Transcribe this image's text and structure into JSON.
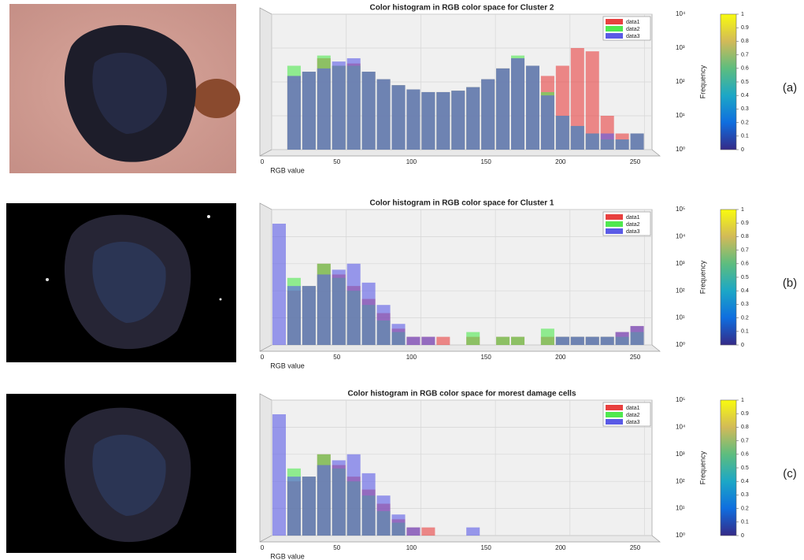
{
  "chart_data": [
    {
      "type": "histogram",
      "title": "Color histogram in RGB color space for Cluster 2",
      "x_label": "RGB value",
      "bins": [
        0,
        10,
        20,
        30,
        40,
        50,
        60,
        70,
        80,
        90,
        100,
        110,
        120,
        130,
        140,
        150,
        160,
        170,
        180,
        190,
        200,
        210,
        220,
        230,
        240,
        250
      ],
      "series": [
        {
          "name": "data1",
          "color": "#e8403f",
          "values": [
            1,
            150,
            200,
            500,
            300,
            350,
            200,
            120,
            80,
            60,
            50,
            50,
            55,
            70,
            120,
            250,
            500,
            300,
            150,
            300,
            1000,
            800,
            10,
            3,
            3
          ]
        },
        {
          "name": "data2",
          "color": "#4fe84f",
          "values": [
            1,
            300,
            200,
            600,
            300,
            300,
            200,
            120,
            80,
            60,
            50,
            50,
            55,
            70,
            120,
            250,
            600,
            300,
            50,
            10,
            5,
            3,
            2,
            2,
            3
          ]
        },
        {
          "name": "data3",
          "color": "#5a5ae6",
          "values": [
            1,
            150,
            200,
            250,
            400,
            500,
            200,
            120,
            80,
            60,
            50,
            50,
            55,
            70,
            120,
            250,
            500,
            300,
            40,
            10,
            5,
            3,
            3,
            2,
            3
          ]
        }
      ],
      "xlim": [
        0,
        255
      ],
      "xticks": [
        0,
        50,
        100,
        150,
        200,
        250
      ],
      "ylim": [
        1,
        10000
      ],
      "log_y": true,
      "yticks": [
        {
          "value": 1,
          "label": "10⁰"
        },
        {
          "value": 10,
          "label": "10¹"
        },
        {
          "value": 100,
          "label": "10²"
        },
        {
          "value": 1000,
          "label": "10³"
        },
        {
          "value": 10000,
          "label": "10⁴"
        }
      ],
      "grid": true,
      "legend": "upper right",
      "colorbar": {
        "label": "Frequency",
        "lim": [
          0,
          1
        ],
        "ticks": [
          0,
          0.1,
          0.2,
          0.3,
          0.4,
          0.5,
          0.6,
          0.7,
          0.8,
          0.9,
          1
        ]
      },
      "panel_label": "(a)"
    },
    {
      "type": "histogram",
      "title": "Color histogram in RGB color space for Cluster 1",
      "x_label": "RGB value",
      "bins": [
        0,
        10,
        20,
        30,
        40,
        50,
        60,
        70,
        80,
        90,
        100,
        110,
        120,
        130,
        140,
        150,
        160,
        170,
        180,
        190,
        200,
        210,
        220,
        230,
        240,
        250
      ],
      "series": [
        {
          "name": "data1",
          "color": "#e8403f",
          "values": [
            1,
            100,
            150,
            1000,
            400,
            150,
            50,
            15,
            4,
            2,
            2,
            2,
            1,
            2,
            1,
            2,
            2,
            1,
            2,
            2,
            2,
            2,
            2,
            3,
            5
          ]
        },
        {
          "name": "data2",
          "color": "#4fe84f",
          "values": [
            1,
            300,
            150,
            1000,
            300,
            100,
            30,
            8,
            3,
            1,
            1,
            1,
            1,
            3,
            1,
            2,
            2,
            1,
            4,
            2,
            2,
            2,
            2,
            2,
            3
          ]
        },
        {
          "name": "data3",
          "color": "#5a5ae6",
          "values": [
            30000,
            150,
            150,
            400,
            600,
            1000,
            200,
            30,
            6,
            2,
            2,
            1,
            1,
            1,
            1,
            1,
            1,
            1,
            1,
            2,
            2,
            2,
            2,
            3,
            5
          ]
        }
      ],
      "xlim": [
        0,
        255
      ],
      "xticks": [
        0,
        50,
        100,
        150,
        200,
        250
      ],
      "ylim": [
        1,
        100000
      ],
      "log_y": true,
      "yticks": [
        {
          "value": 1,
          "label": "10⁰"
        },
        {
          "value": 10,
          "label": "10¹"
        },
        {
          "value": 100,
          "label": "10²"
        },
        {
          "value": 1000,
          "label": "10³"
        },
        {
          "value": 10000,
          "label": "10⁴"
        },
        {
          "value": 100000,
          "label": "10⁵"
        }
      ],
      "grid": true,
      "legend": "upper right",
      "colorbar": {
        "label": "Frequency",
        "lim": [
          0,
          1
        ],
        "ticks": [
          0,
          0.1,
          0.2,
          0.3,
          0.4,
          0.5,
          0.6,
          0.7,
          0.8,
          0.9,
          1
        ]
      },
      "panel_label": "(b)"
    },
    {
      "type": "histogram",
      "title": "Color histogram in RGB color space for morest damage cells",
      "x_label": "RGB value",
      "bins": [
        0,
        10,
        20,
        30,
        40,
        50,
        60,
        70,
        80,
        90,
        100,
        110,
        120,
        130,
        140,
        150,
        160,
        170,
        180,
        190,
        200,
        210,
        220,
        230,
        240,
        250
      ],
      "series": [
        {
          "name": "data1",
          "color": "#e8403f",
          "values": [
            1,
            100,
            150,
            1000,
            400,
            150,
            50,
            15,
            4,
            2,
            2,
            1,
            1,
            1,
            1,
            1,
            1,
            1,
            1,
            1,
            1,
            1,
            1,
            1,
            1
          ]
        },
        {
          "name": "data2",
          "color": "#4fe84f",
          "values": [
            1,
            300,
            150,
            1000,
            300,
            100,
            30,
            8,
            3,
            1,
            1,
            1,
            1,
            1,
            1,
            1,
            1,
            1,
            1,
            1,
            1,
            1,
            1,
            1,
            1
          ]
        },
        {
          "name": "data3",
          "color": "#5a5ae6",
          "values": [
            30000,
            150,
            150,
            400,
            600,
            1000,
            200,
            30,
            6,
            2,
            1,
            1,
            1,
            2,
            1,
            1,
            1,
            1,
            1,
            1,
            1,
            1,
            1,
            1,
            1
          ]
        }
      ],
      "xlim": [
        0,
        255
      ],
      "xticks": [
        0,
        50,
        100,
        150,
        200,
        250
      ],
      "ylim": [
        1,
        100000
      ],
      "log_y": true,
      "yticks": [
        {
          "value": 1,
          "label": "10⁰"
        },
        {
          "value": 10,
          "label": "10¹"
        },
        {
          "value": 100,
          "label": "10²"
        },
        {
          "value": 1000,
          "label": "10³"
        },
        {
          "value": 10000,
          "label": "10⁴"
        },
        {
          "value": 100000,
          "label": "10⁵"
        }
      ],
      "grid": true,
      "legend": "upper right",
      "colorbar": {
        "label": "Frequency",
        "lim": [
          0,
          1
        ],
        "ticks": [
          0,
          0.1,
          0.2,
          0.3,
          0.4,
          0.5,
          0.6,
          0.7,
          0.8,
          0.9,
          1
        ]
      },
      "panel_label": "(c)"
    }
  ]
}
